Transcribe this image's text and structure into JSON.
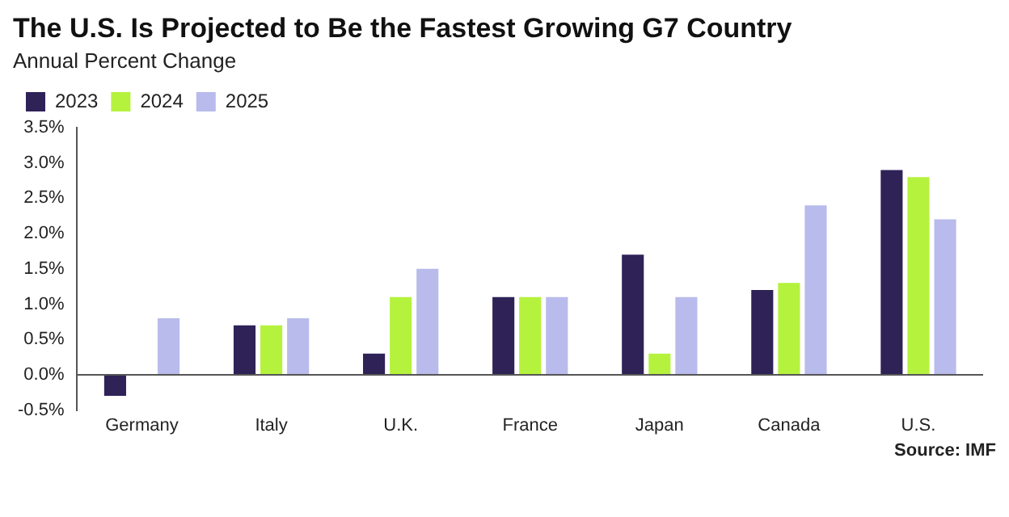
{
  "chart_data": {
    "type": "bar",
    "title": "The U.S. Is Projected to Be the Fastest Growing G7 Country",
    "subtitle": "Annual Percent Change",
    "categories": [
      "Germany",
      "Italy",
      "U.K.",
      "France",
      "Japan",
      "Canada",
      "U.S."
    ],
    "series": [
      {
        "name": "2023",
        "color": "#2e2257",
        "values": [
          -0.3,
          0.7,
          0.3,
          1.1,
          1.7,
          1.2,
          2.9
        ]
      },
      {
        "name": "2024",
        "color": "#b5f23d",
        "values": [
          0,
          0.7,
          1.1,
          1.1,
          0.3,
          1.3,
          2.8
        ]
      },
      {
        "name": "2025",
        "color": "#b8bbeb",
        "values": [
          0.8,
          0.8,
          1.5,
          1.1,
          1.1,
          2.4,
          2.2
        ]
      }
    ],
    "ylim": [
      -0.5,
      3.5
    ],
    "yticks": [
      {
        "value": -0.5,
        "label": "-0.5%"
      },
      {
        "value": 0,
        "label": "0.0%"
      },
      {
        "value": 0.5,
        "label": "0.5%"
      },
      {
        "value": 1,
        "label": "1.0%"
      },
      {
        "value": 1.5,
        "label": "1.5%"
      },
      {
        "value": 2,
        "label": "2.0%"
      },
      {
        "value": 2.5,
        "label": "2.5%"
      },
      {
        "value": 3,
        "label": "3.0%"
      },
      {
        "value": 3.5,
        "label": "3.5%"
      }
    ],
    "grid": false,
    "legend": "top left",
    "annotations": [
      "Source: IMF"
    ]
  }
}
